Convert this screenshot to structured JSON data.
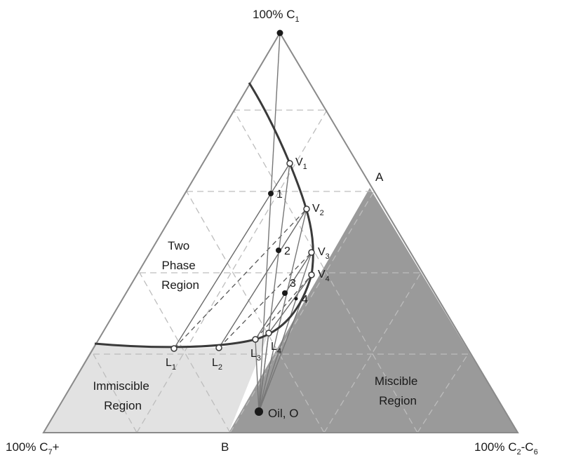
{
  "vertices": {
    "top": "100% C",
    "top_sub": "1",
    "left": "100% C",
    "left_sub": "7",
    "left_suffix": "+",
    "right": "100% C",
    "right_sub": "2",
    "right_suffix": "-C",
    "right_sub2": "6"
  },
  "points": {
    "A": "A",
    "B": "B",
    "oil": "Oil, O"
  },
  "vapor_labels": [
    {
      "text": "V",
      "sub": "1"
    },
    {
      "text": "V",
      "sub": "2"
    },
    {
      "text": "V",
      "sub": "3"
    },
    {
      "text": "V",
      "sub": "4"
    }
  ],
  "liquid_labels": [
    {
      "text": "L",
      "sub": "1"
    },
    {
      "text": "L",
      "sub": "2"
    },
    {
      "text": "L",
      "sub": "3"
    },
    {
      "text": "L",
      "sub": "4"
    }
  ],
  "mix_labels": [
    "1",
    "2",
    "3",
    "4"
  ],
  "regions": {
    "two_phase": [
      "Two",
      "Phase",
      "Region"
    ],
    "immiscible": [
      "Immiscible",
      "Region"
    ],
    "miscible": [
      "Miscible",
      "Region"
    ]
  },
  "colors": {
    "miscible_fill": "#9a9a9a",
    "immiscible_fill": "#e2e2e2",
    "grid_dash": "#bdbdbd",
    "envelope": "#3a3a3a"
  }
}
